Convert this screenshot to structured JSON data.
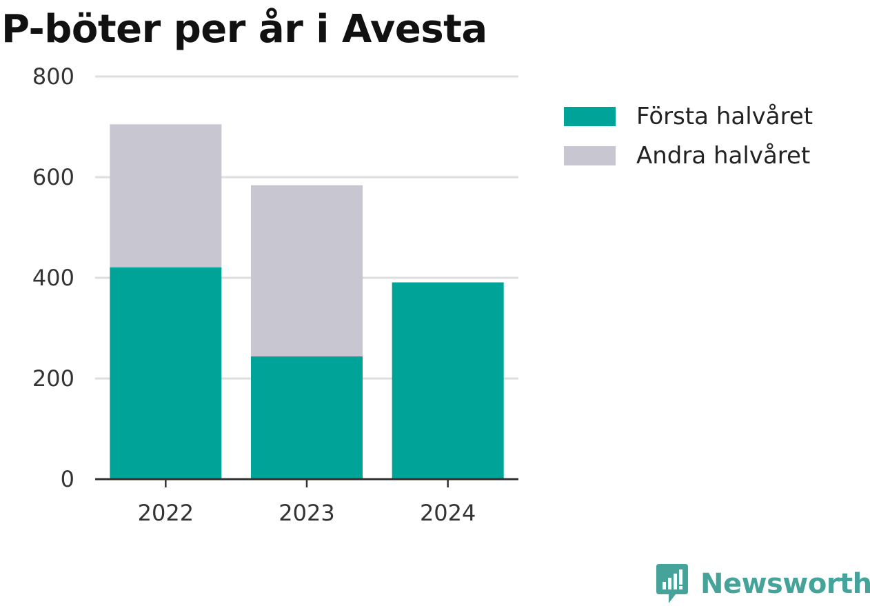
{
  "chart_data": {
    "type": "bar",
    "stacked": true,
    "title": "P-böter per år i Avesta",
    "categories": [
      "2022",
      "2023",
      "2024"
    ],
    "series": [
      {
        "name": "Första halvåret",
        "values": [
          421,
          244,
          391
        ],
        "color": "#00a398"
      },
      {
        "name": "Andra halvåret",
        "values": [
          284,
          340,
          0
        ],
        "color": "#c8c7d1"
      }
    ],
    "xlabel": "",
    "ylabel": "",
    "ylim": [
      0,
      800
    ],
    "yticks": [
      "0",
      "200",
      "400",
      "600",
      "800"
    ],
    "grid": true,
    "legend_position": "top-right"
  },
  "brand": {
    "name": "Newsworthy",
    "icon": "newsworthy-logo-icon",
    "color": "#45a39a"
  }
}
